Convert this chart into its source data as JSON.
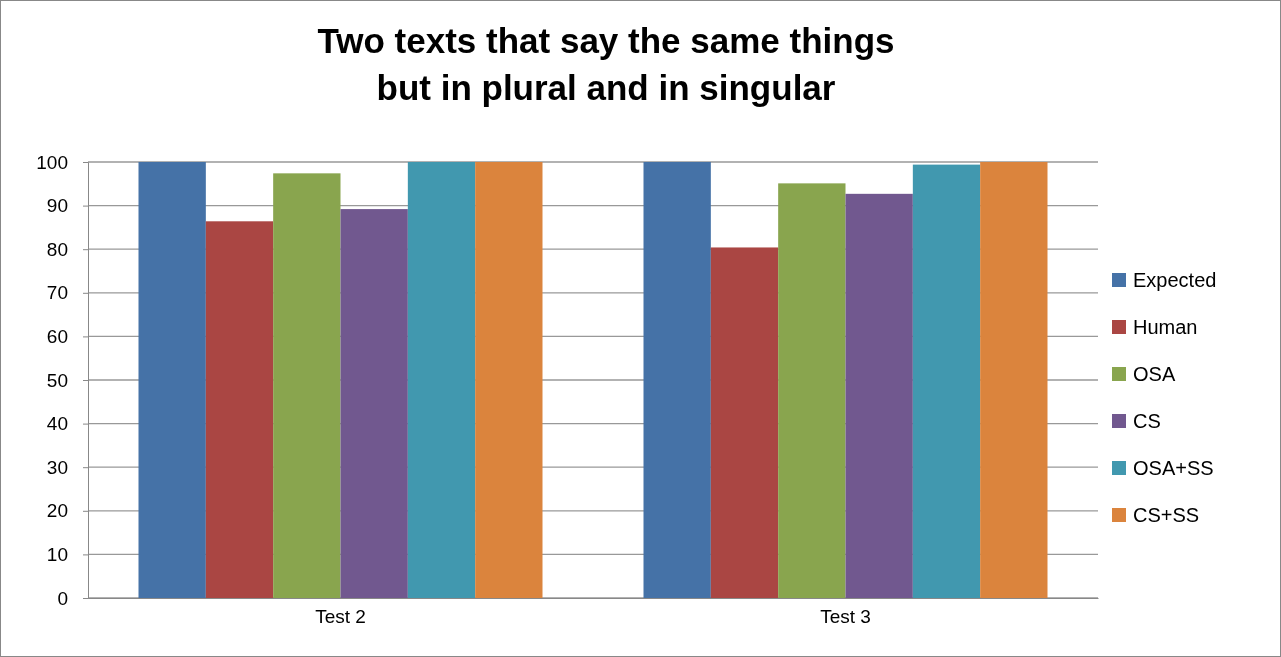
{
  "chart_data": {
    "type": "bar",
    "title": "Two texts that say the same things\nbut in plural and in singular",
    "categories": [
      "Test 2",
      "Test 3"
    ],
    "series": [
      {
        "name": "Expected",
        "color": "#4572a7",
        "values": [
          100,
          100
        ]
      },
      {
        "name": "Human",
        "color": "#aa4643",
        "values": [
          86.4,
          80.4
        ]
      },
      {
        "name": "OSA",
        "color": "#89a54e",
        "values": [
          97.4,
          95.1
        ]
      },
      {
        "name": "CS",
        "color": "#71588f",
        "values": [
          89.2,
          92.7
        ]
      },
      {
        "name": "OSA+SS",
        "color": "#4198af",
        "values": [
          100,
          99.4
        ]
      },
      {
        "name": "CS+SS",
        "color": "#db843d",
        "values": [
          100,
          100
        ]
      }
    ],
    "ylim": [
      0,
      100
    ],
    "yticks": [
      0,
      10,
      20,
      30,
      40,
      50,
      60,
      70,
      80,
      90,
      100
    ],
    "grid": "y",
    "legend": "right"
  }
}
